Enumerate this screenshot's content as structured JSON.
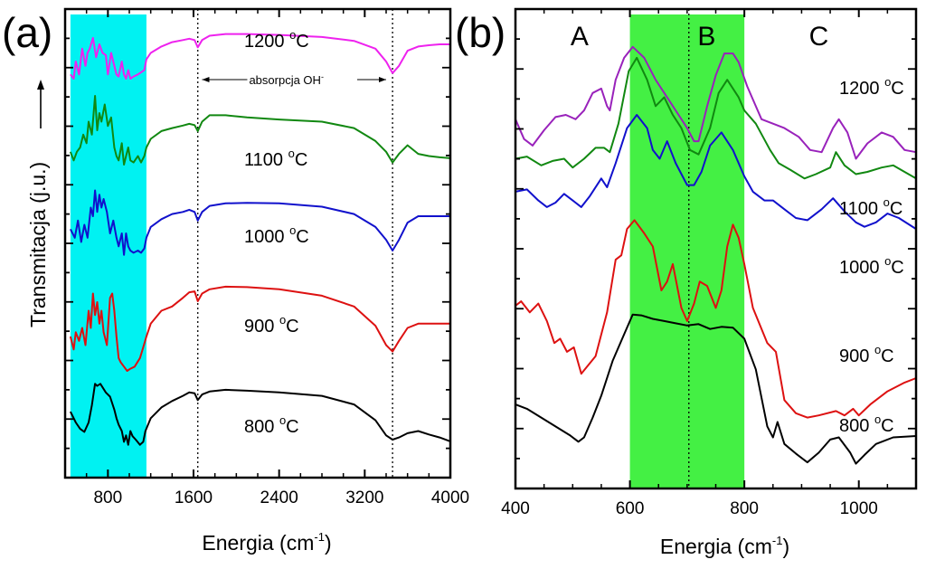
{
  "figure": {
    "panel_a_label": "(a)",
    "panel_b_label": "(b)"
  },
  "chart_data": [
    {
      "type": "line",
      "panel": "(a)",
      "title": "",
      "xlabel": {
        "text": "Energia (cm",
        "sup": "-1",
        "close": ")"
      },
      "ylabel": "Transmitacja (j.u.) →",
      "xlim": [
        400,
        4000
      ],
      "ylim": [
        0,
        100
      ],
      "xticks": [
        800,
        1600,
        2400,
        3200,
        4000
      ],
      "xtick_labels": [
        "800",
        "1600",
        "2400",
        "3200",
        "4000"
      ],
      "highlight": {
        "x_range": [
          450,
          1160
        ],
        "color": "#00f2f2"
      },
      "vlines": [
        1640,
        3460
      ],
      "annotation": {
        "text": "absorpcja OH",
        "sup": "-",
        "x_range": [
          1680,
          3400
        ],
        "y": 85
      },
      "series": [
        {
          "name": "800 °C",
          "label_num": "800 ",
          "label_deg": "o",
          "label_unit": "C",
          "color": "#000000",
          "x": [
            450,
            500,
            540,
            580,
            620,
            650,
            680,
            700,
            730,
            780,
            820,
            860,
            880,
            900,
            930,
            950,
            970,
            990,
            1010,
            1030,
            1060,
            1100,
            1130,
            1150,
            1200,
            1300,
            1400,
            1500,
            1560,
            1610,
            1640,
            1680,
            1750,
            1900,
            2100,
            2400,
            2800,
            3100,
            3300,
            3400,
            3460,
            3520,
            3600,
            3700,
            3800,
            3900,
            4000
          ],
          "y": [
            10.5,
            8,
            6.5,
            5.8,
            8,
            12,
            17,
            16.5,
            17,
            15,
            14,
            11,
            9,
            7.5,
            6,
            3.5,
            5,
            2.8,
            6,
            4.8,
            4,
            2.8,
            3.5,
            6,
            9,
            11.5,
            13,
            14.2,
            15,
            14.8,
            13.2,
            14.5,
            15.2,
            15.6,
            15.4,
            15,
            14.2,
            12.2,
            8.5,
            5,
            4,
            4.5,
            5.5,
            6,
            5.2,
            4.5,
            3.6
          ]
        },
        {
          "name": "900 °C",
          "label_num": "900 ",
          "label_deg": "o",
          "label_unit": "C",
          "color": "#dd1111",
          "x": [
            450,
            480,
            500,
            530,
            560,
            590,
            620,
            640,
            660,
            680,
            700,
            720,
            740,
            760,
            790,
            820,
            840,
            860,
            880,
            900,
            920,
            950,
            980,
            1010,
            1050,
            1100,
            1130,
            1160,
            1200,
            1300,
            1400,
            1500,
            1560,
            1610,
            1640,
            1680,
            1750,
            1900,
            2100,
            2400,
            2800,
            3100,
            3300,
            3400,
            3460,
            3520,
            3600,
            3700,
            3800,
            3900,
            4000
          ],
          "y": [
            28,
            25,
            29,
            27,
            30,
            26,
            34,
            30,
            38,
            33,
            36,
            31,
            34,
            29,
            26,
            37,
            38,
            34,
            28,
            23,
            22,
            21,
            20,
            20.5,
            21,
            23,
            25.5,
            28,
            31,
            34,
            35,
            37,
            38.3,
            38.5,
            36.2,
            38,
            39,
            39.6,
            39.5,
            39,
            37.5,
            35,
            30.5,
            26,
            24.5,
            27,
            30,
            31,
            31,
            31,
            31
          ]
        },
        {
          "name": "1000 °C",
          "label_num": "1000 ",
          "label_deg": "o",
          "label_unit": "C",
          "color": "#1111cc",
          "x": [
            450,
            490,
            520,
            550,
            580,
            610,
            640,
            660,
            680,
            700,
            720,
            740,
            760,
            790,
            820,
            850,
            880,
            900,
            930,
            950,
            970,
            990,
            1010,
            1040,
            1080,
            1110,
            1140,
            1160,
            1200,
            1300,
            1400,
            1500,
            1560,
            1610,
            1640,
            1680,
            1750,
            1900,
            2100,
            2400,
            2800,
            3100,
            3300,
            3400,
            3460,
            3520,
            3600,
            3700,
            3800,
            3900,
            4000
          ],
          "y": [
            53,
            51,
            55,
            50,
            54,
            51,
            58,
            56,
            62,
            57,
            61,
            58,
            60,
            57,
            52,
            55,
            51,
            49,
            52,
            47,
            52,
            49,
            48,
            47.5,
            48,
            47.5,
            48.5,
            51,
            53.5,
            55.3,
            56.5,
            57,
            57.5,
            57,
            55,
            57,
            58.4,
            59,
            59.1,
            59,
            58.2,
            56.5,
            53.5,
            50.5,
            48,
            50.5,
            54.5,
            56,
            56,
            56,
            56
          ]
        },
        {
          "name": "1100 °C",
          "label_num": "1100 ",
          "label_deg": "o",
          "label_unit": "C",
          "color": "#118811",
          "x": [
            450,
            480,
            510,
            540,
            570,
            600,
            620,
            650,
            680,
            700,
            720,
            740,
            770,
            800,
            830,
            860,
            880,
            900,
            930,
            950,
            970,
            990,
            1010,
            1040,
            1080,
            1110,
            1140,
            1160,
            1200,
            1300,
            1400,
            1500,
            1560,
            1610,
            1640,
            1680,
            1750,
            1900,
            2100,
            2400,
            2800,
            3100,
            3300,
            3400,
            3460,
            3520,
            3600,
            3700,
            3800,
            3900,
            4000
          ],
          "y": [
            71,
            69,
            71,
            72,
            75,
            73,
            78,
            75,
            84,
            76,
            80,
            78,
            82,
            77,
            79,
            72,
            70,
            69,
            73,
            68,
            70,
            72,
            69,
            68.5,
            70,
            68.5,
            70,
            72,
            74,
            75.8,
            76.5,
            77.1,
            77.5,
            77.2,
            75.8,
            78,
            79.5,
            79.5,
            79,
            78.5,
            78,
            76.5,
            73.5,
            71,
            68.5,
            70.5,
            72.5,
            70.5,
            70,
            69.7,
            69.5
          ]
        },
        {
          "name": "1200 °C",
          "label_num": "1200 ",
          "label_deg": "o",
          "label_unit": "C",
          "color": "#ee22ee",
          "x": [
            450,
            480,
            500,
            530,
            560,
            590,
            610,
            630,
            660,
            690,
            720,
            750,
            780,
            800,
            830,
            860,
            880,
            900,
            930,
            950,
            970,
            990,
            1010,
            1040,
            1080,
            1110,
            1140,
            1160,
            1200,
            1300,
            1400,
            1500,
            1560,
            1610,
            1640,
            1680,
            1750,
            1900,
            2100,
            2400,
            2800,
            3100,
            3300,
            3400,
            3460,
            3520,
            3600,
            3700,
            3800,
            3900,
            4000
          ],
          "y": [
            89,
            88,
            92,
            89,
            95,
            91,
            94,
            95,
            97.5,
            93,
            96,
            94,
            93.5,
            89,
            94,
            91,
            89,
            88.5,
            92,
            89,
            88,
            90,
            88,
            88.5,
            89,
            89.5,
            90,
            92.5,
            94,
            95.5,
            96.5,
            97,
            97.3,
            97,
            95.3,
            97,
            98,
            98.4,
            98.4,
            98.2,
            97.7,
            96.8,
            95,
            92,
            89.3,
            91,
            94.5,
            95.5,
            95.8,
            96,
            96
          ]
        }
      ]
    },
    {
      "type": "line",
      "panel": "(b)",
      "title": "",
      "xlabel": {
        "text": "Energia (cm",
        "sup": "-1",
        "close": ")"
      },
      "ylabel": "",
      "xlim": [
        400,
        1100
      ],
      "ylim": [
        0,
        100
      ],
      "xticks": [
        400,
        600,
        800,
        1000
      ],
      "xtick_labels": [
        "400",
        "600",
        "800",
        "1000"
      ],
      "highlight": {
        "x_range": [
          600,
          800
        ],
        "color": "#44f044"
      },
      "vlines": [
        703
      ],
      "regions": [
        {
          "label": "A",
          "x": 512
        },
        {
          "label": "B",
          "x": 734
        },
        {
          "label": "C",
          "x": 930
        }
      ],
      "series": [
        {
          "name": "800 °C",
          "label_num": "800 ",
          "label_deg": "o",
          "label_unit": "C",
          "color": "#000000",
          "x": [
            400,
            420,
            445,
            470,
            495,
            510,
            520,
            535,
            550,
            570,
            590,
            605,
            620,
            640,
            660,
            680,
            700,
            720,
            740,
            760,
            780,
            800,
            820,
            840,
            850,
            858,
            870,
            890,
            910,
            930,
            950,
            965,
            985,
            995,
            1010,
            1030,
            1060,
            1100
          ],
          "y": [
            14,
            13,
            11,
            9,
            7,
            5.5,
            6.5,
            11,
            16,
            24,
            30,
            34.5,
            34.3,
            33.5,
            33,
            32.5,
            32,
            32.3,
            31.2,
            31.7,
            31.5,
            29,
            22,
            9,
            6.5,
            10,
            5,
            2.8,
            0.8,
            3,
            6,
            6.5,
            3,
            0.5,
            2.5,
            5,
            6.5,
            6.8
          ]
        },
        {
          "name": "900 °C",
          "label_num": "900 ",
          "label_deg": "o",
          "label_unit": "C",
          "color": "#dd1111",
          "x": [
            400,
            410,
            425,
            440,
            455,
            468,
            478,
            490,
            502,
            515,
            540,
            560,
            575,
            585,
            595,
            608,
            625,
            640,
            655,
            665,
            675,
            690,
            700,
            712,
            722,
            735,
            750,
            760,
            770,
            780,
            790,
            800,
            815,
            840,
            855,
            870,
            890,
            910,
            930,
            960,
            975,
            990,
            1000,
            1020,
            1050,
            1080,
            1100
          ],
          "y": [
            36.5,
            37.5,
            35,
            37,
            33,
            28,
            29,
            26,
            27,
            21,
            25,
            35,
            47,
            48,
            54,
            56,
            53,
            50,
            40,
            42,
            46,
            36,
            33,
            37,
            42,
            41,
            36,
            40,
            50,
            55,
            52,
            46,
            36,
            28,
            26,
            15,
            12,
            11,
            11.5,
            12.5,
            11.5,
            13,
            11.5,
            14,
            17,
            19,
            20
          ]
        },
        {
          "name": "1000 °C",
          "label_num": "1000 ",
          "label_deg": "o",
          "label_unit": "C",
          "color": "#1111cc",
          "x": [
            400,
            420,
            440,
            455,
            470,
            485,
            500,
            515,
            530,
            550,
            560,
            575,
            595,
            612,
            630,
            640,
            652,
            665,
            680,
            700,
            712,
            725,
            740,
            760,
            780,
            800,
            815,
            835,
            850,
            870,
            890,
            910,
            935,
            955,
            975,
            995,
            1010,
            1030,
            1050,
            1070,
            1100
          ],
          "y": [
            62.5,
            63,
            60.5,
            59,
            60,
            62,
            60.5,
            59,
            61.5,
            65.5,
            63.5,
            69,
            77,
            80,
            77,
            72,
            70,
            74,
            69,
            64,
            64,
            67,
            73,
            76,
            72,
            66,
            62.5,
            60.5,
            60.5,
            58.5,
            56.5,
            56,
            58.5,
            61,
            58,
            55.5,
            54.5,
            55.5,
            57.5,
            56.5,
            54
          ]
        },
        {
          "name": "1100 °C",
          "label_num": "1100 ",
          "label_deg": "o",
          "label_unit": "C",
          "color": "#118811",
          "x": [
            400,
            420,
            445,
            465,
            485,
            500,
            520,
            540,
            555,
            565,
            580,
            598,
            612,
            630,
            645,
            660,
            675,
            690,
            705,
            720,
            740,
            755,
            770,
            790,
            800,
            820,
            845,
            860,
            880,
            905,
            925,
            950,
            960,
            975,
            995,
            1015,
            1040,
            1060,
            1080,
            1100
          ],
          "y": [
            70,
            70.5,
            68.5,
            69.5,
            70,
            68,
            70,
            72.5,
            72.5,
            71.5,
            78,
            90,
            93,
            88,
            82,
            84,
            80,
            77,
            72,
            71,
            77,
            85,
            88,
            84,
            81,
            78,
            72,
            69,
            67.5,
            65.5,
            66.5,
            68,
            71.5,
            68.5,
            66.5,
            67,
            68,
            68.5,
            67,
            65.5
          ]
        },
        {
          "name": "1200 °C",
          "label_num": "1200 ",
          "label_deg": "o",
          "label_unit": "C",
          "color": "#9922bb",
          "x": [
            400,
            415,
            430,
            450,
            470,
            488,
            505,
            520,
            535,
            550,
            560,
            565,
            575,
            590,
            605,
            625,
            645,
            665,
            685,
            700,
            712,
            720,
            735,
            750,
            765,
            780,
            790,
            805,
            830,
            850,
            870,
            895,
            915,
            935,
            955,
            965,
            980,
            995,
            1015,
            1040,
            1060,
            1080,
            1100
          ],
          "y": [
            79,
            74.5,
            73,
            76.5,
            79.5,
            80,
            79,
            81,
            85,
            86,
            82,
            81,
            88,
            93,
            95.5,
            93,
            88,
            84,
            80,
            77,
            74,
            74,
            82,
            89,
            94,
            94,
            92,
            86.5,
            79,
            78,
            77,
            75,
            72,
            71.5,
            77,
            79,
            76,
            70,
            73.5,
            76,
            75,
            72,
            71.5
          ]
        }
      ]
    }
  ]
}
